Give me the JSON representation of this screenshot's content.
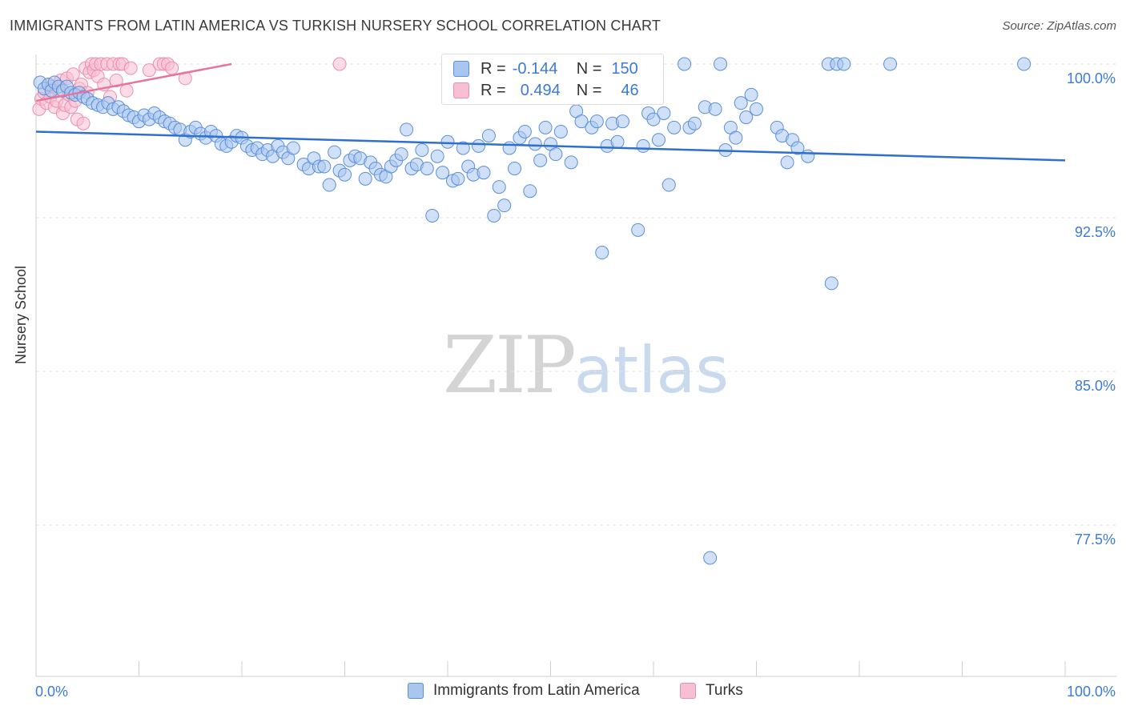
{
  "header": {
    "title": "IMMIGRANTS FROM LATIN AMERICA VS TURKISH NURSERY SCHOOL CORRELATION CHART",
    "source": "Source: ZipAtlas.com"
  },
  "watermark": {
    "zip": "ZIP",
    "atlas": "atlas"
  },
  "stats": {
    "blue": {
      "r_label": "R =",
      "r": "-0.144",
      "n_label": "N =",
      "n": "150"
    },
    "pink": {
      "r_label": "R =",
      "r": "0.494",
      "n_label": "N =",
      "n": "46"
    }
  },
  "colors": {
    "blue_fill": "#a9c6ee",
    "blue_stroke": "#5b8fdb",
    "blue_line": "#2f6fd0",
    "pink_fill": "#f7c0d2",
    "pink_stroke": "#ec8fae",
    "pink_line": "#e8749c",
    "grid": "#e2e2e2",
    "tick_label": "#3c7ad6"
  },
  "chart_data": {
    "type": "scatter",
    "title": "IMMIGRANTS FROM LATIN AMERICA VS TURKISH NURSERY SCHOOL CORRELATION CHART",
    "xlabel": "",
    "ylabel": "Nursery School",
    "xlim": [
      0,
      100
    ],
    "ylim": [
      70.8,
      100.8
    ],
    "x_tick_labels": [
      "0.0%",
      "100.0%"
    ],
    "y_ticks": [
      100.0,
      92.5,
      85.0,
      77.5
    ],
    "y_tick_labels": [
      "100.0%",
      "92.5%",
      "85.0%",
      "77.5%"
    ],
    "legend": [
      "Immigrants from Latin America",
      "Turks"
    ],
    "series": [
      {
        "name": "Immigrants from Latin America",
        "r": -0.144,
        "n": 150,
        "trend": {
          "x": [
            0,
            100
          ],
          "y": [
            96.7,
            95.3
          ]
        },
        "points": [
          [
            0.4,
            99.1
          ],
          [
            0.8,
            98.8
          ],
          [
            1.2,
            99.0
          ],
          [
            1.5,
            98.7
          ],
          [
            1.8,
            99.1
          ],
          [
            2.2,
            98.9
          ],
          [
            2.6,
            98.7
          ],
          [
            3.0,
            98.9
          ],
          [
            3.4,
            98.6
          ],
          [
            3.8,
            98.5
          ],
          [
            4.2,
            98.6
          ],
          [
            4.6,
            98.4
          ],
          [
            5.0,
            98.3
          ],
          [
            5.5,
            98.1
          ],
          [
            6.0,
            98.0
          ],
          [
            6.5,
            97.9
          ],
          [
            7.0,
            98.1
          ],
          [
            7.5,
            97.8
          ],
          [
            8.0,
            97.9
          ],
          [
            8.5,
            97.7
          ],
          [
            9.0,
            97.5
          ],
          [
            9.5,
            97.4
          ],
          [
            10.0,
            97.2
          ],
          [
            10.5,
            97.5
          ],
          [
            11.0,
            97.3
          ],
          [
            11.5,
            97.6
          ],
          [
            12.0,
            97.4
          ],
          [
            12.5,
            97.2
          ],
          [
            13.0,
            97.1
          ],
          [
            13.5,
            96.9
          ],
          [
            14.0,
            96.8
          ],
          [
            14.5,
            96.3
          ],
          [
            15.0,
            96.7
          ],
          [
            15.5,
            96.9
          ],
          [
            16.0,
            96.6
          ],
          [
            16.5,
            96.4
          ],
          [
            17.0,
            96.7
          ],
          [
            17.5,
            96.5
          ],
          [
            18.0,
            96.1
          ],
          [
            18.5,
            96.0
          ],
          [
            19.0,
            96.2
          ],
          [
            19.5,
            96.5
          ],
          [
            20.0,
            96.4
          ],
          [
            20.5,
            96.0
          ],
          [
            21.0,
            95.8
          ],
          [
            21.5,
            95.9
          ],
          [
            22.0,
            95.6
          ],
          [
            22.5,
            95.8
          ],
          [
            23.0,
            95.5
          ],
          [
            23.5,
            96.0
          ],
          [
            24.0,
            95.7
          ],
          [
            24.5,
            95.4
          ],
          [
            25.0,
            95.9
          ],
          [
            26.0,
            95.1
          ],
          [
            26.5,
            94.9
          ],
          [
            27.0,
            95.4
          ],
          [
            27.5,
            95.0
          ],
          [
            28.0,
            95.0
          ],
          [
            28.5,
            94.1
          ],
          [
            29.0,
            95.7
          ],
          [
            29.5,
            94.8
          ],
          [
            30.0,
            94.6
          ],
          [
            30.5,
            95.3
          ],
          [
            31.0,
            95.5
          ],
          [
            31.5,
            95.4
          ],
          [
            32.0,
            94.4
          ],
          [
            32.5,
            95.2
          ],
          [
            33.0,
            94.9
          ],
          [
            33.5,
            94.6
          ],
          [
            34.0,
            94.5
          ],
          [
            34.5,
            95.0
          ],
          [
            35.0,
            95.3
          ],
          [
            35.5,
            95.6
          ],
          [
            36.0,
            96.8
          ],
          [
            36.5,
            94.9
          ],
          [
            37.0,
            95.1
          ],
          [
            37.5,
            95.8
          ],
          [
            38.0,
            94.9
          ],
          [
            38.5,
            92.6
          ],
          [
            39.0,
            95.5
          ],
          [
            39.5,
            94.7
          ],
          [
            40.0,
            96.2
          ],
          [
            40.5,
            94.3
          ],
          [
            41.0,
            94.4
          ],
          [
            41.5,
            95.9
          ],
          [
            42.0,
            95.0
          ],
          [
            42.5,
            94.6
          ],
          [
            43.0,
            96.0
          ],
          [
            43.5,
            94.7
          ],
          [
            44.0,
            96.5
          ],
          [
            44.5,
            92.6
          ],
          [
            45.0,
            94.0
          ],
          [
            45.5,
            93.1
          ],
          [
            46.0,
            95.9
          ],
          [
            46.5,
            94.9
          ],
          [
            47.0,
            96.4
          ],
          [
            47.5,
            96.7
          ],
          [
            48.0,
            93.8
          ],
          [
            48.5,
            96.1
          ],
          [
            49.0,
            95.3
          ],
          [
            49.5,
            96.9
          ],
          [
            50.0,
            96.1
          ],
          [
            50.5,
            95.6
          ],
          [
            51.0,
            96.7
          ],
          [
            52.0,
            95.2
          ],
          [
            52.5,
            97.7
          ],
          [
            53.0,
            97.2
          ],
          [
            53.5,
            98.8
          ],
          [
            54.0,
            96.9
          ],
          [
            54.5,
            97.2
          ],
          [
            55.0,
            90.8
          ],
          [
            55.5,
            96.0
          ],
          [
            56.0,
            97.1
          ],
          [
            56.5,
            96.2
          ],
          [
            57.0,
            97.2
          ],
          [
            58.0,
            98.6
          ],
          [
            58.5,
            91.9
          ],
          [
            59.0,
            96.0
          ],
          [
            59.5,
            97.6
          ],
          [
            60.0,
            97.3
          ],
          [
            60.5,
            96.3
          ],
          [
            61.0,
            97.6
          ],
          [
            61.5,
            94.1
          ],
          [
            62.0,
            96.9
          ],
          [
            63.0,
            100.0
          ],
          [
            63.5,
            96.9
          ],
          [
            64.0,
            97.1
          ],
          [
            65.0,
            97.9
          ],
          [
            65.5,
            75.9
          ],
          [
            66.0,
            97.8
          ],
          [
            66.5,
            100.0
          ],
          [
            67.0,
            95.8
          ],
          [
            67.5,
            96.9
          ],
          [
            68.0,
            96.4
          ],
          [
            68.5,
            98.1
          ],
          [
            69.0,
            97.4
          ],
          [
            69.5,
            98.5
          ],
          [
            70.0,
            97.8
          ],
          [
            72.0,
            96.9
          ],
          [
            72.5,
            96.5
          ],
          [
            73.0,
            95.2
          ],
          [
            73.5,
            96.3
          ],
          [
            74.0,
            95.9
          ],
          [
            75.0,
            95.5
          ],
          [
            77.0,
            100.0
          ],
          [
            77.3,
            89.3
          ],
          [
            77.8,
            100.0
          ],
          [
            78.5,
            100.0
          ],
          [
            83.0,
            100.0
          ],
          [
            96.0,
            100.0
          ]
        ]
      },
      {
        "name": "Turks",
        "r": 0.494,
        "n": 46,
        "trend": {
          "x": [
            0,
            19
          ],
          "y": [
            98.2,
            100.0
          ]
        },
        "points": [
          [
            0.3,
            97.8
          ],
          [
            0.5,
            98.3
          ],
          [
            0.8,
            98.6
          ],
          [
            1.0,
            98.1
          ],
          [
            1.2,
            99.0
          ],
          [
            1.4,
            98.4
          ],
          [
            1.6,
            98.9
          ],
          [
            1.8,
            97.9
          ],
          [
            2.0,
            98.2
          ],
          [
            2.2,
            98.7
          ],
          [
            2.4,
            99.2
          ],
          [
            2.6,
            97.6
          ],
          [
            2.8,
            98.0
          ],
          [
            3.0,
            99.3
          ],
          [
            3.2,
            98.5
          ],
          [
            3.4,
            97.9
          ],
          [
            3.6,
            99.5
          ],
          [
            3.8,
            98.2
          ],
          [
            4.0,
            97.3
          ],
          [
            4.2,
            98.8
          ],
          [
            4.4,
            99.0
          ],
          [
            4.6,
            97.1
          ],
          [
            4.8,
            99.8
          ],
          [
            5.0,
            98.6
          ],
          [
            5.2,
            99.6
          ],
          [
            5.4,
            100.0
          ],
          [
            5.6,
            99.7
          ],
          [
            5.8,
            100.0
          ],
          [
            6.0,
            99.4
          ],
          [
            6.3,
            100.0
          ],
          [
            6.6,
            99.0
          ],
          [
            6.9,
            100.0
          ],
          [
            7.2,
            98.4
          ],
          [
            7.5,
            100.0
          ],
          [
            7.8,
            99.2
          ],
          [
            8.1,
            100.0
          ],
          [
            8.4,
            100.0
          ],
          [
            8.8,
            98.7
          ],
          [
            9.2,
            99.8
          ],
          [
            11.0,
            99.7
          ],
          [
            12.0,
            100.0
          ],
          [
            12.4,
            100.0
          ],
          [
            12.8,
            100.0
          ],
          [
            13.2,
            99.8
          ],
          [
            29.5,
            100.0
          ],
          [
            14.5,
            99.3
          ]
        ]
      }
    ]
  },
  "legend": {
    "blue_label": "Immigrants from Latin America",
    "pink_label": "Turks"
  }
}
